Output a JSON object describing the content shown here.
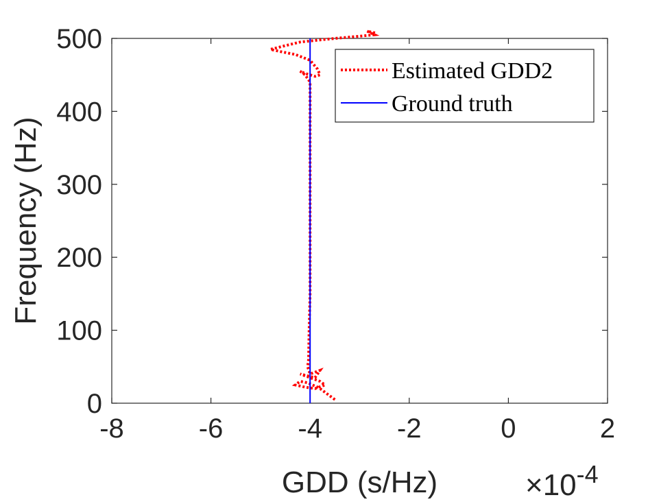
{
  "chart_data": {
    "type": "line",
    "title": "",
    "xlabel": "GDD (s/Hz)",
    "ylabel": "Frequency (Hz)",
    "x_exponent_label": "×10",
    "x_exponent_power": "-4",
    "xlim": [
      -8,
      2
    ],
    "ylim": [
      0,
      500
    ],
    "x_ticks": [
      -8,
      -6,
      -4,
      -2,
      0,
      2
    ],
    "y_ticks": [
      0,
      100,
      200,
      300,
      400,
      500
    ],
    "x_tick_labels": [
      "-8",
      "-6",
      "-4",
      "-2",
      "0",
      "2"
    ],
    "y_tick_labels": [
      "0",
      "100",
      "200",
      "300",
      "400",
      "500"
    ],
    "legend_position": "top-right",
    "series": [
      {
        "name": "Estimated GDD2",
        "style": "dotted",
        "color": "#ff0000",
        "x": [
          -3.5,
          -3.6,
          -3.7,
          -3.8,
          -3.85,
          -3.95,
          -4.05,
          -4.2,
          -4.3,
          -4.1,
          -3.9,
          -3.7,
          -3.8,
          -4.0,
          -4.2,
          -3.9,
          -3.8,
          -4.0,
          -4.05,
          -4.03,
          -4.02,
          -4.0,
          -4.0,
          -4.0,
          -4.0,
          -4.0,
          -4.0,
          -4.0,
          -4.05,
          -4.1,
          -4.2,
          -4.1,
          -3.9,
          -3.8,
          -3.85,
          -4.0,
          -4.3,
          -4.6,
          -4.8,
          -4.5,
          -4.2,
          -3.5,
          -3.0,
          -2.7,
          -2.85,
          -2.65
        ],
        "y": [
          5,
          10,
          15,
          20,
          22,
          25,
          28,
          30,
          25,
          22,
          20,
          25,
          30,
          35,
          40,
          35,
          45,
          40,
          50,
          60,
          100,
          150,
          200,
          250,
          300,
          350,
          400,
          440,
          445,
          450,
          455,
          452,
          448,
          450,
          458,
          470,
          478,
          482,
          485,
          490,
          495,
          500,
          503,
          505,
          510,
          507
        ]
      },
      {
        "name": "Ground truth",
        "style": "solid",
        "color": "#0000ff",
        "x": [
          -4,
          -4
        ],
        "y": [
          0,
          500
        ]
      }
    ]
  }
}
